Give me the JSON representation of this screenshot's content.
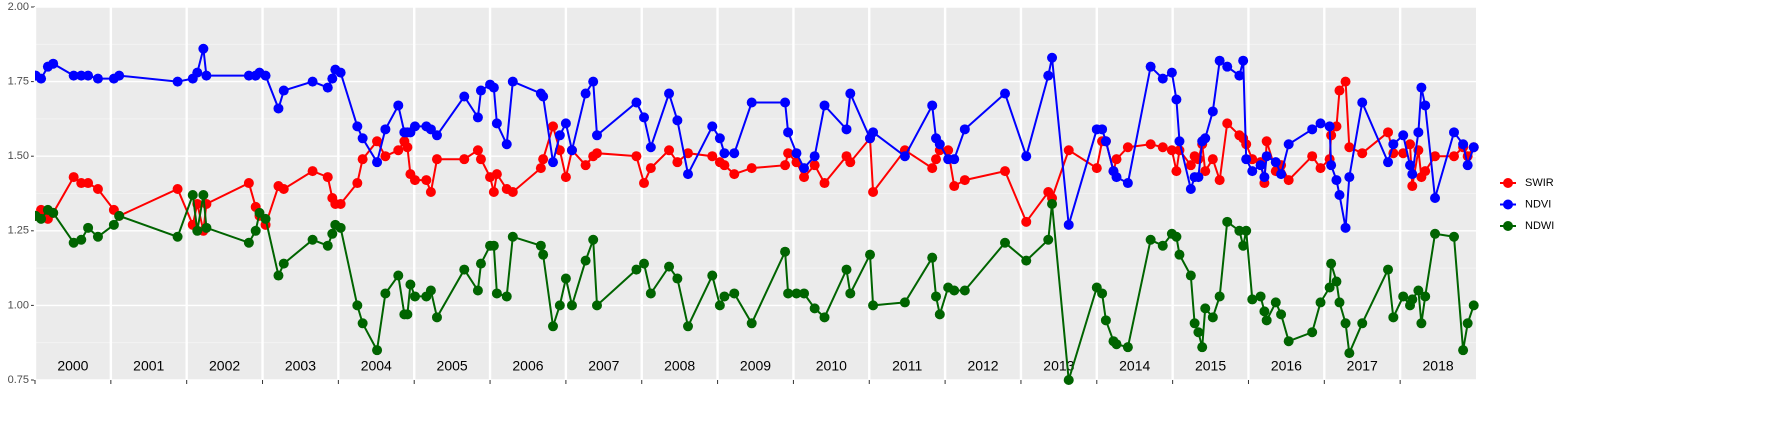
{
  "chart_data": {
    "type": "line",
    "x": [
      2000.01,
      2000.08,
      2000.17,
      2000.24,
      2000.51,
      2000.61,
      2000.7,
      2000.83,
      2001.04,
      2001.11,
      2001.88,
      2002.08,
      2002.14,
      2002.22,
      2002.26,
      2002.82,
      2002.91,
      2002.96,
      2003.04,
      2003.21,
      2003.28,
      2003.66,
      2003.86,
      2003.92,
      2003.96,
      2004.03,
      2004.25,
      2004.32,
      2004.51,
      2004.62,
      2004.79,
      2004.87,
      2004.91,
      2004.95,
      2005.01,
      2005.16,
      2005.22,
      2005.3,
      2005.66,
      2005.84,
      2005.88,
      2006.0,
      2006.05,
      2006.09,
      2006.22,
      2006.3,
      2006.67,
      2006.7,
      2006.83,
      2006.92,
      2007.0,
      2007.08,
      2007.26,
      2007.36,
      2007.41,
      2007.93,
      2008.03,
      2008.12,
      2008.36,
      2008.47,
      2008.61,
      2008.93,
      2009.03,
      2009.09,
      2009.22,
      2009.45,
      2009.89,
      2009.93,
      2010.04,
      2010.14,
      2010.28,
      2010.41,
      2010.7,
      2010.75,
      2011.01,
      2011.05,
      2011.47,
      2011.83,
      2011.88,
      2011.93,
      2012.04,
      2012.12,
      2012.26,
      2012.79,
      2013.07,
      2013.36,
      2013.41,
      2013.63,
      2014.0,
      2014.07,
      2014.12,
      2014.22,
      2014.26,
      2014.41,
      2014.71,
      2014.87,
      2014.99,
      2015.05,
      2015.09,
      2015.24,
      2015.29,
      2015.34,
      2015.39,
      2015.43,
      2015.53,
      2015.62,
      2015.72,
      2015.88,
      2015.93,
      2015.97,
      2016.05,
      2016.16,
      2016.21,
      2016.24,
      2016.36,
      2016.43,
      2016.53,
      2016.84,
      2016.95,
      2017.07,
      2017.09,
      2017.16,
      2017.2,
      2017.28,
      2017.33,
      2017.5,
      2017.84,
      2017.91,
      2018.04,
      2018.13,
      2018.16,
      2018.24,
      2018.28,
      2018.33,
      2018.46,
      2018.71,
      2018.83,
      2018.89,
      2018.97
    ],
    "series": [
      {
        "name": "SWIR",
        "color": "#ff0000",
        "values": [
          1.3,
          1.32,
          1.29,
          1.31,
          1.43,
          1.41,
          1.41,
          1.39,
          1.32,
          1.3,
          1.39,
          1.27,
          1.34,
          1.25,
          1.34,
          1.41,
          1.33,
          1.3,
          1.27,
          1.4,
          1.39,
          1.45,
          1.43,
          1.36,
          1.34,
          1.34,
          1.41,
          1.49,
          1.55,
          1.5,
          1.52,
          1.55,
          1.53,
          1.44,
          1.42,
          1.42,
          1.38,
          1.49,
          1.49,
          1.52,
          1.49,
          1.43,
          1.38,
          1.44,
          1.39,
          1.38,
          1.46,
          1.49,
          1.6,
          1.52,
          1.43,
          1.52,
          1.47,
          1.5,
          1.51,
          1.5,
          1.41,
          1.46,
          1.52,
          1.48,
          1.51,
          1.5,
          1.48,
          1.47,
          1.44,
          1.46,
          1.47,
          1.51,
          1.48,
          1.43,
          1.47,
          1.41,
          1.5,
          1.48,
          1.56,
          1.38,
          1.52,
          1.46,
          1.49,
          1.52,
          1.52,
          1.4,
          1.42,
          1.45,
          1.28,
          1.38,
          1.36,
          1.52,
          1.46,
          1.55,
          1.55,
          1.45,
          1.49,
          1.53,
          1.54,
          1.53,
          1.52,
          1.45,
          1.52,
          1.47,
          1.5,
          1.49,
          1.54,
          1.45,
          1.49,
          1.42,
          1.61,
          1.57,
          1.56,
          1.54,
          1.49,
          1.48,
          1.41,
          1.55,
          1.45,
          1.47,
          1.42,
          1.5,
          1.46,
          1.49,
          1.57,
          1.6,
          1.72,
          1.75,
          1.53,
          1.51,
          1.58,
          1.51,
          1.51,
          1.54,
          1.4,
          1.52,
          1.43,
          1.45,
          1.5,
          1.5,
          1.53,
          1.5,
          1.53
        ]
      },
      {
        "name": "NDVI",
        "color": "#0000ff",
        "values": [
          1.77,
          1.76,
          1.8,
          1.81,
          1.77,
          1.77,
          1.77,
          1.76,
          1.76,
          1.77,
          1.75,
          1.76,
          1.78,
          1.86,
          1.77,
          1.77,
          1.77,
          1.78,
          1.77,
          1.66,
          1.72,
          1.75,
          1.73,
          1.76,
          1.79,
          1.78,
          1.6,
          1.56,
          1.48,
          1.59,
          1.67,
          1.58,
          1.58,
          1.58,
          1.6,
          1.6,
          1.59,
          1.57,
          1.7,
          1.63,
          1.72,
          1.74,
          1.73,
          1.61,
          1.54,
          1.75,
          1.71,
          1.7,
          1.48,
          1.57,
          1.61,
          1.52,
          1.71,
          1.75,
          1.57,
          1.68,
          1.63,
          1.53,
          1.71,
          1.62,
          1.44,
          1.6,
          1.56,
          1.51,
          1.51,
          1.68,
          1.68,
          1.58,
          1.51,
          1.46,
          1.5,
          1.67,
          1.59,
          1.71,
          1.56,
          1.58,
          1.5,
          1.67,
          1.56,
          1.54,
          1.49,
          1.49,
          1.59,
          1.71,
          1.5,
          1.77,
          1.83,
          1.27,
          1.59,
          1.59,
          1.55,
          1.45,
          1.43,
          1.41,
          1.8,
          1.76,
          1.78,
          1.69,
          1.55,
          1.39,
          1.43,
          1.43,
          1.55,
          1.56,
          1.65,
          1.82,
          1.8,
          1.77,
          1.82,
          1.49,
          1.45,
          1.47,
          1.43,
          1.5,
          1.48,
          1.44,
          1.54,
          1.59,
          1.61,
          1.6,
          1.47,
          1.42,
          1.37,
          1.26,
          1.43,
          1.68,
          1.48,
          1.54,
          1.57,
          1.47,
          1.44,
          1.58,
          1.73,
          1.67,
          1.36,
          1.58,
          1.54,
          1.47,
          1.53
        ]
      },
      {
        "name": "NDWI",
        "color": "#006400",
        "values": [
          1.3,
          1.29,
          1.32,
          1.31,
          1.21,
          1.22,
          1.26,
          1.23,
          1.27,
          1.3,
          1.23,
          1.37,
          1.25,
          1.37,
          1.26,
          1.21,
          1.25,
          1.31,
          1.29,
          1.1,
          1.14,
          1.22,
          1.2,
          1.24,
          1.27,
          1.26,
          1.0,
          0.94,
          0.85,
          1.04,
          1.1,
          0.97,
          0.97,
          1.07,
          1.03,
          1.03,
          1.05,
          0.96,
          1.12,
          1.05,
          1.14,
          1.2,
          1.2,
          1.04,
          1.03,
          1.23,
          1.2,
          1.17,
          0.93,
          1.0,
          1.09,
          1.0,
          1.15,
          1.22,
          1.0,
          1.12,
          1.14,
          1.04,
          1.13,
          1.09,
          0.93,
          1.1,
          1.0,
          1.03,
          1.04,
          0.94,
          1.18,
          1.04,
          1.04,
          1.04,
          0.99,
          0.96,
          1.12,
          1.04,
          1.17,
          1.0,
          1.01,
          1.16,
          1.03,
          0.97,
          1.06,
          1.05,
          1.05,
          1.21,
          1.15,
          1.22,
          1.34,
          0.75,
          1.06,
          1.04,
          0.95,
          0.88,
          0.87,
          0.86,
          1.22,
          1.2,
          1.24,
          1.23,
          1.17,
          1.1,
          0.94,
          0.91,
          0.86,
          0.99,
          0.96,
          1.03,
          1.28,
          1.25,
          1.2,
          1.25,
          1.02,
          1.03,
          0.98,
          0.95,
          1.01,
          0.97,
          0.88,
          0.91,
          1.01,
          1.06,
          1.14,
          1.08,
          1.01,
          0.94,
          0.84,
          0.94,
          1.12,
          0.96,
          1.03,
          1.0,
          1.02,
          1.05,
          0.94,
          1.03,
          1.24,
          1.23,
          0.85,
          0.94,
          1.0
        ]
      }
    ],
    "xlim": [
      2000,
      2019
    ],
    "xticks": [
      2000,
      2001,
      2002,
      2003,
      2004,
      2005,
      2006,
      2007,
      2008,
      2009,
      2010,
      2011,
      2012,
      2013,
      2014,
      2015,
      2016,
      2017,
      2018
    ],
    "year_labels": [
      "2000",
      "2001",
      "2002",
      "2003",
      "2004",
      "2005",
      "2006",
      "2007",
      "2008",
      "2009",
      "2010",
      "2011",
      "2012",
      "2013",
      "2014",
      "2015",
      "2016",
      "2017",
      "2018"
    ],
    "ylim": [
      0.75,
      2.0
    ],
    "yticks": [
      {
        "value": 0.75,
        "label": "0.75"
      },
      {
        "value": 1.0,
        "label": "1.00"
      },
      {
        "value": 1.25,
        "label": "1.25"
      },
      {
        "value": 1.5,
        "label": "1.50"
      },
      {
        "value": 1.75,
        "label": "1.75"
      },
      {
        "value": 2.0,
        "label": "2.00"
      }
    ],
    "grid": true,
    "legend": "right"
  }
}
